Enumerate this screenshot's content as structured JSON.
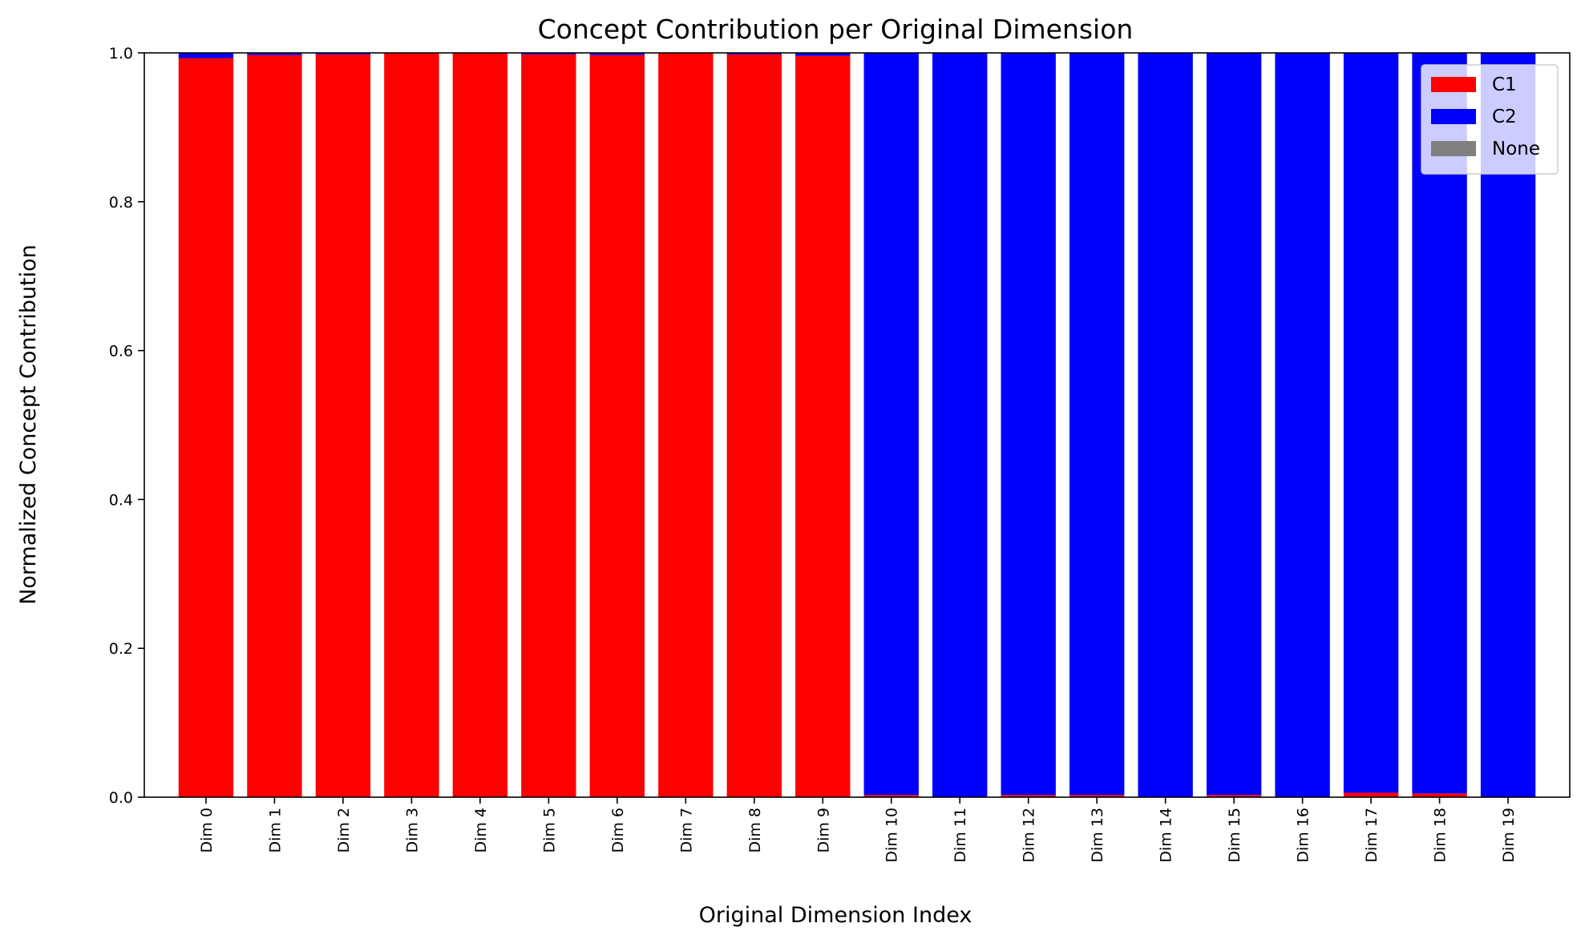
{
  "chart_data": {
    "type": "bar",
    "stacked": true,
    "title": "Concept Contribution per Original Dimension",
    "xlabel": "Original Dimension Index",
    "ylabel": "Normalized Concept Contribution",
    "ylim": [
      0,
      1.0
    ],
    "yticks": [
      "0.0",
      "0.2",
      "0.4",
      "0.6",
      "0.8",
      "1.0"
    ],
    "grid": false,
    "legend_position": "top-right",
    "categories": [
      "Dim 0",
      "Dim 1",
      "Dim 2",
      "Dim 3",
      "Dim 4",
      "Dim 5",
      "Dim 6",
      "Dim 7",
      "Dim 8",
      "Dim 9",
      "Dim 10",
      "Dim 11",
      "Dim 12",
      "Dim 13",
      "Dim 14",
      "Dim 15",
      "Dim 16",
      "Dim 17",
      "Dim 18",
      "Dim 19"
    ],
    "series": [
      {
        "name": "C1",
        "color": "#ff0000",
        "values": [
          0.993,
          0.997,
          0.998,
          1.0,
          1.0,
          0.998,
          0.997,
          1.0,
          0.998,
          0.996,
          0.003,
          0.0,
          0.003,
          0.003,
          0.0,
          0.003,
          0.0,
          0.006,
          0.005,
          0.0
        ]
      },
      {
        "name": "C2",
        "color": "#0000ff",
        "values": [
          0.007,
          0.003,
          0.002,
          0.0,
          0.0,
          0.002,
          0.003,
          0.0,
          0.002,
          0.004,
          0.997,
          1.0,
          0.997,
          0.997,
          1.0,
          0.997,
          1.0,
          0.994,
          0.995,
          1.0
        ]
      },
      {
        "name": "None",
        "color": "#808080",
        "values": [
          0,
          0,
          0,
          0,
          0,
          0,
          0,
          0,
          0,
          0,
          0,
          0,
          0,
          0,
          0,
          0,
          0,
          0,
          0,
          0
        ]
      }
    ]
  }
}
